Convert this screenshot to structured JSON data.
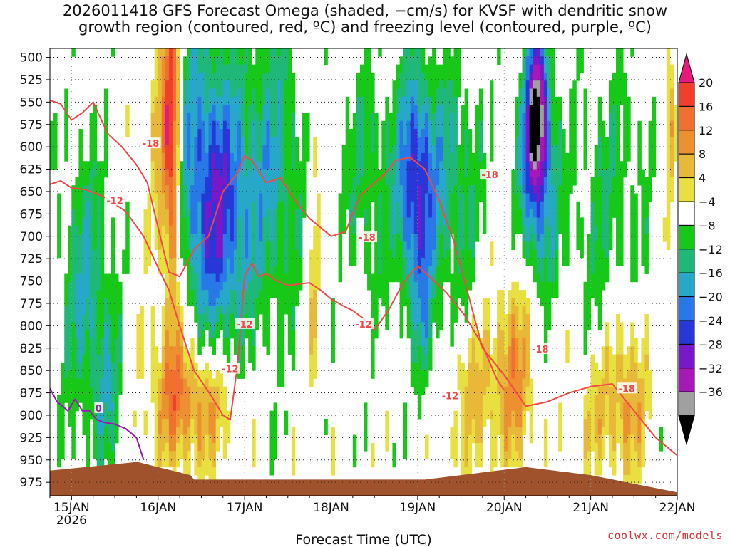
{
  "title_lines": [
    "2026011418 GFS Forecast Omega (shaded, −cm/s) for KVSF with dendritic snow",
    "growth region (contoured, red, ºC) and freezing level (contoured, purple, ºC)"
  ],
  "credit": "coolwx.com/models",
  "chart_data": {
    "type": "heatmap",
    "title": "2026011418 GFS Forecast Omega (shaded, −cm/s) for KVSF with dendritic snow growth region (contoured, red, ºC) and freezing level (contoured, purple, ºC)",
    "xlabel": "Forecast Time (UTC)",
    "ylabel": "",
    "x_range_hours": [
      0,
      174
    ],
    "x_ticks": [
      {
        "hour": 6,
        "label": "15JAN",
        "sublabel": "2026"
      },
      {
        "hour": 30,
        "label": "16JAN"
      },
      {
        "hour": 54,
        "label": "17JAN"
      },
      {
        "hour": 78,
        "label": "18JAN"
      },
      {
        "hour": 102,
        "label": "19JAN"
      },
      {
        "hour": 126,
        "label": "20JAN"
      },
      {
        "hour": 150,
        "label": "21JAN"
      },
      {
        "hour": 174,
        "label": "22JAN"
      }
    ],
    "y_ticks_hpa": [
      500,
      525,
      550,
      575,
      600,
      625,
      650,
      675,
      700,
      725,
      750,
      775,
      800,
      825,
      850,
      875,
      900,
      925,
      950,
      975
    ],
    "y_range_hpa": [
      490,
      990
    ],
    "grid": true,
    "colorbar": {
      "labels": [
        "20",
        "16",
        "12",
        "8",
        "4",
        "−4",
        "−8",
        "−12",
        "−16",
        "−20",
        "−24",
        "−28",
        "−32",
        "−36"
      ],
      "colors": [
        "#e8187c",
        "#f0402c",
        "#f07030",
        "#ec9030",
        "#e8b838",
        "#e8e040",
        "#ffffff",
        "#18c818",
        "#20b878",
        "#28a8c8",
        "#2878e8",
        "#2838d8",
        "#7818c8",
        "#a818b8",
        "#a0a0a0",
        "#000000"
      ]
    },
    "series": [
      {
        "name": "-12",
        "color": "#f04848",
        "x": [
          0,
          3,
          6,
          10,
          15,
          21,
          26,
          30,
          33,
          36,
          40,
          45,
          48,
          50,
          52,
          54,
          56,
          58,
          60,
          63,
          66,
          72,
          75,
          78,
          81,
          84,
          87,
          90,
          94,
          98,
          102,
          106,
          110,
          115,
          120,
          124,
          126
        ],
        "y": [
          642,
          638,
          646,
          648,
          656,
          672,
          700,
          735,
          760,
          800,
          850,
          880,
          900,
          905,
          845,
          745,
          730,
          745,
          742,
          750,
          755,
          752,
          760,
          770,
          777,
          783,
          792,
          805,
          782,
          752,
          733,
          748,
          763,
          788,
          822,
          860,
          872
        ],
        "labels": [
          {
            "x": 18,
            "y": 660,
            "text": "-12"
          },
          {
            "x": 50,
            "y": 848,
            "text": "-12"
          },
          {
            "x": 54,
            "y": 798,
            "text": "-12"
          },
          {
            "x": 87,
            "y": 798,
            "text": "-12"
          },
          {
            "x": 111,
            "y": 878,
            "text": "-12"
          }
        ]
      },
      {
        "name": "-18",
        "color": "#f04848",
        "x": [
          0,
          3,
          6,
          9,
          12,
          16,
          20,
          24,
          27,
          30,
          33,
          36,
          40,
          44,
          48,
          52,
          54,
          56,
          60,
          64,
          68,
          72,
          75,
          78,
          82,
          86,
          90,
          93,
          96,
          100,
          104,
          108,
          112,
          116,
          120,
          126,
          132,
          138,
          144,
          150,
          156,
          162,
          168,
          174
        ],
        "y": [
          548,
          552,
          570,
          562,
          550,
          585,
          600,
          620,
          640,
          690,
          740,
          745,
          715,
          700,
          650,
          630,
          610,
          615,
          640,
          635,
          660,
          680,
          690,
          700,
          695,
          655,
          640,
          630,
          615,
          612,
          625,
          660,
          705,
          765,
          825,
          855,
          890,
          885,
          875,
          868,
          865,
          895,
          925,
          945
        ],
        "labels": [
          {
            "x": 28,
            "y": 596,
            "text": "-18"
          },
          {
            "x": 88,
            "y": 701,
            "text": "-18"
          },
          {
            "x": 122,
            "y": 631,
            "text": "-18"
          },
          {
            "x": 136,
            "y": 826,
            "text": "-18"
          },
          {
            "x": 160,
            "y": 870,
            "text": "-18"
          }
        ]
      },
      {
        "name": "0",
        "color": "#9818b8",
        "x": [
          0,
          2,
          5,
          7,
          9,
          11,
          13,
          15,
          18,
          21,
          24,
          26
        ],
        "y": [
          870,
          885,
          895,
          882,
          895,
          895,
          905,
          908,
          910,
          915,
          925,
          950
        ],
        "labels": [
          {
            "x": 13.5,
            "y": 892,
            "text": "0"
          }
        ]
      }
    ]
  }
}
